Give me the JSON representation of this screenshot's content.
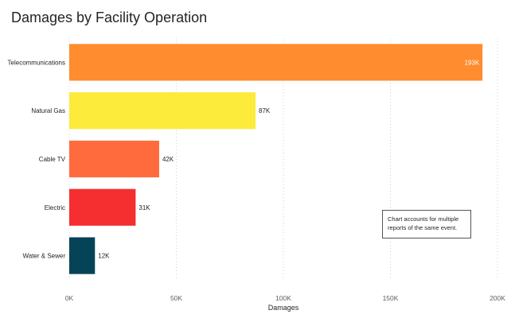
{
  "title": "Damages by Facility Operation",
  "note": "Chart accounts for multiple reports of the same event.",
  "chart_data": {
    "type": "bar",
    "orientation": "horizontal",
    "title": "Damages by Facility Operation",
    "xlabel": "Damages",
    "ylabel": "",
    "categories": [
      "Telecommunications",
      "Natural Gas",
      "Cable TV",
      "Electric",
      "Water & Sewer"
    ],
    "values": [
      193000,
      87000,
      42000,
      31000,
      12000
    ],
    "data_labels": [
      "193K",
      "87K",
      "42K",
      "31K",
      "12K"
    ],
    "colors": [
      "#FF8C2E",
      "#FCEB3A",
      "#FF6B3D",
      "#F52F2F",
      "#054456"
    ],
    "xlim": [
      0,
      200000
    ],
    "xticks": [
      0,
      50000,
      100000,
      150000,
      200000
    ],
    "xtick_labels": [
      "0K",
      "50K",
      "100K",
      "150K",
      "200K"
    ],
    "grid": true
  }
}
